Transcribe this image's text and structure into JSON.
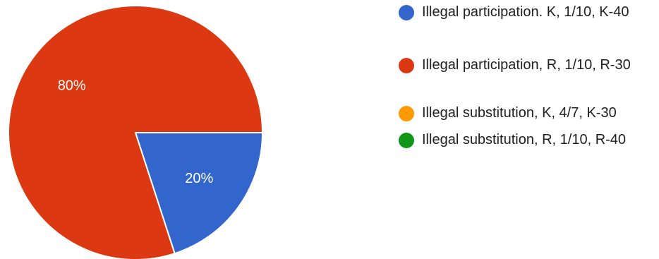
{
  "chart_data": {
    "type": "pie",
    "title": "",
    "legend_position": "right",
    "series": [
      {
        "values": [
          20,
          80,
          0,
          0
        ],
        "data_labels": [
          "20%",
          "80%"
        ]
      }
    ],
    "categories": [
      "Illegal participation. K, 1/10, K-40",
      "Illegal participation, R, 1/10, R-30",
      "Illegal substitution, K, 4/7, K-30",
      "Illegal substitution, R, 1/10, R-40"
    ],
    "colors": [
      "#3366cc",
      "#dc3912",
      "#ff9900",
      "#109618"
    ]
  }
}
